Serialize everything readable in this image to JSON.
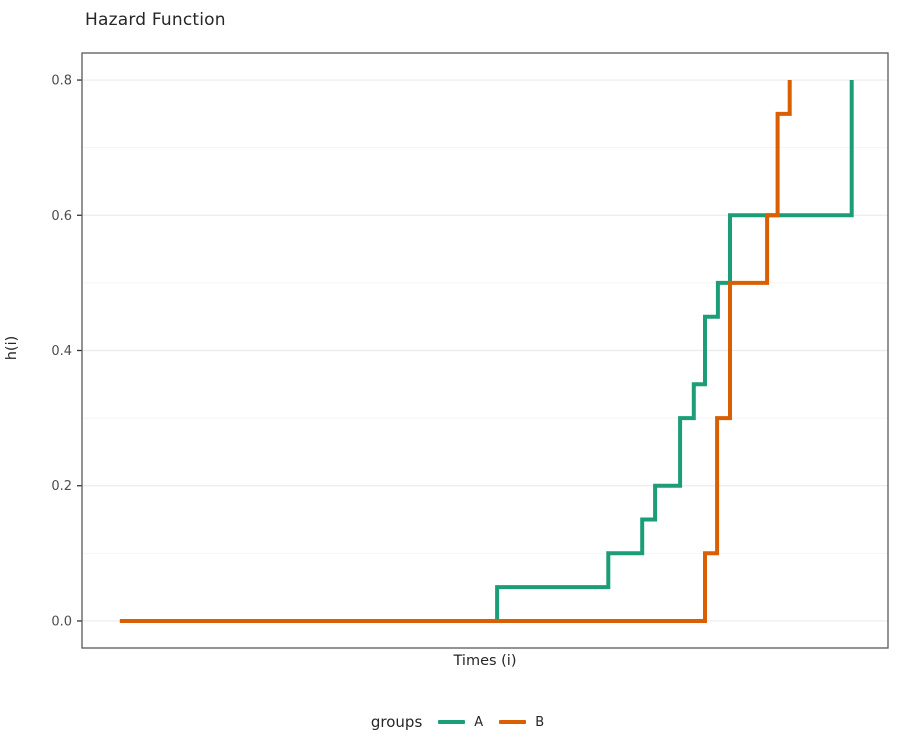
{
  "title": "Hazard Function",
  "axes": {
    "y_label": "h(i)",
    "x_label": "Times (i)"
  },
  "legend": {
    "title": "groups",
    "entries": [
      {
        "label": "A",
        "color": "#1b9e77"
      },
      {
        "label": "B",
        "color": "#d95f02"
      }
    ],
    "position": "bottom"
  },
  "style_colors": {
    "panel_border": "#595959",
    "major_gridline": "#ebebeb",
    "minor_gridline": "#f4f4f4",
    "tick_mark": "#333333",
    "tick_label": "#4d4d4d",
    "background": "#ffffff"
  },
  "chart_data": {
    "type": "line",
    "subtype": "step-hazard-curves",
    "title": "Hazard Function",
    "xlabel": "Times (i)",
    "ylabel": "h(i)",
    "x_axis_note": "no tick marks or tick labels shown; x values below are relative positions 0-1 across the panel",
    "xlim": [
      0,
      1
    ],
    "ylim": [
      -0.04,
      0.84
    ],
    "y_major_ticks": [
      0.0,
      0.2,
      0.4,
      0.6,
      0.8
    ],
    "y_tick_labels": [
      "0.0",
      "0.2",
      "0.4",
      "0.6",
      "0.8"
    ],
    "y_minor_gridlines": [
      0.1,
      0.3,
      0.5,
      0.7
    ],
    "grid": "on",
    "legend_title": "groups",
    "legend_position": "bottom",
    "line_width": 4,
    "series": [
      {
        "name": "A",
        "color": "#1b9e77",
        "hazard_levels": [
          0.0,
          0.05,
          0.1,
          0.15,
          0.2,
          0.3,
          0.35,
          0.45,
          0.5,
          0.6,
          0.8
        ],
        "step_points": [
          [
            0.047,
            0.0
          ],
          [
            0.515,
            0.0
          ],
          [
            0.515,
            0.05
          ],
          [
            0.653,
            0.05
          ],
          [
            0.653,
            0.1
          ],
          [
            0.695,
            0.1
          ],
          [
            0.695,
            0.15
          ],
          [
            0.711,
            0.15
          ],
          [
            0.711,
            0.2
          ],
          [
            0.742,
            0.2
          ],
          [
            0.742,
            0.3
          ],
          [
            0.759,
            0.3
          ],
          [
            0.759,
            0.35
          ],
          [
            0.773,
            0.35
          ],
          [
            0.773,
            0.45
          ],
          [
            0.789,
            0.45
          ],
          [
            0.789,
            0.5
          ],
          [
            0.804,
            0.5
          ],
          [
            0.804,
            0.6
          ],
          [
            0.955,
            0.6
          ],
          [
            0.955,
            0.8
          ]
        ]
      },
      {
        "name": "B",
        "color": "#d95f02",
        "hazard_levels": [
          0.0,
          0.1,
          0.3,
          0.5,
          0.6,
          0.75,
          0.8
        ],
        "step_points": [
          [
            0.047,
            0.0
          ],
          [
            0.773,
            0.0
          ],
          [
            0.773,
            0.1
          ],
          [
            0.788,
            0.1
          ],
          [
            0.788,
            0.3
          ],
          [
            0.804,
            0.3
          ],
          [
            0.804,
            0.5
          ],
          [
            0.85,
            0.5
          ],
          [
            0.85,
            0.6
          ],
          [
            0.863,
            0.6
          ],
          [
            0.863,
            0.75
          ],
          [
            0.878,
            0.75
          ],
          [
            0.878,
            0.8
          ]
        ]
      }
    ]
  }
}
